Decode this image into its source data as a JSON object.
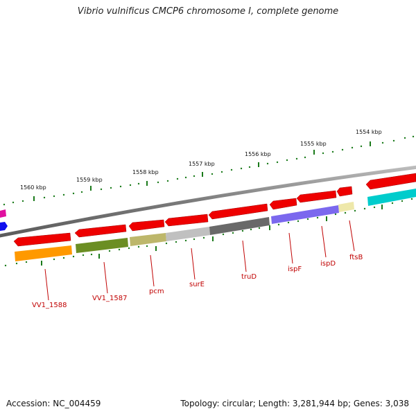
{
  "title": "Vibrio vulnificus CMCP6 chromosome I, complete genome",
  "footer": {
    "accession": "Accession: NC_004459",
    "summary": "Topology: circular; Length: 3,281,944 bp; Genes: 3,038"
  },
  "kbp_labels": [
    "1554 kbp",
    "1555 kbp",
    "1556 kbp",
    "1557 kbp",
    "1558 kbp",
    "1559 kbp",
    "1560 kbp"
  ],
  "gene_labels": [
    "VV1_1588",
    "VV1_1587",
    "pcm",
    "surE",
    "truD",
    "ispF",
    "ispD",
    "ftsB"
  ],
  "colors": {
    "backbone": "#808080",
    "tick": "#1a7a1a",
    "arrow": "#ee0000",
    "label": "#c00000",
    "cog_orange": "#ff9900",
    "cog_olive": "#6b8e23",
    "cog_khaki": "#bdb76b",
    "cog_silver": "#c0c0c0",
    "cog_gray": "#696969",
    "cog_slateblue": "#7b68ee",
    "cog_paleyellow": "#eee8aa",
    "cog_cyan": "#00cccc",
    "edge_magenta": "#e0109f",
    "edge_blue": "#1010ee"
  }
}
